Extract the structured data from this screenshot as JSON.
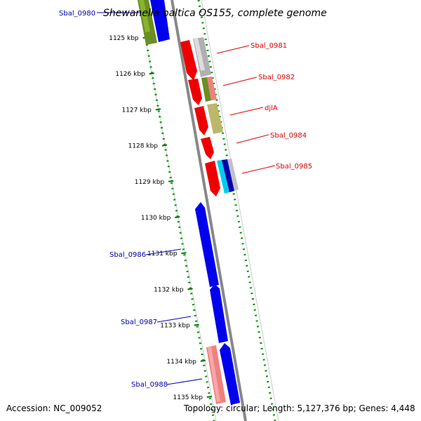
{
  "title": "Shewanella baltica OS155, complete genome",
  "accession": "Accession: NC_009052",
  "topology": "Topology: circular; Length: 5,127,376 bp; Genes: 4,448",
  "colors": {
    "forward": "#ff0000",
    "reverse": "#0000ff",
    "tick": "#007700",
    "backbone": "#888888"
  },
  "ticks": [
    {
      "kbp": 1125,
      "label": "1125 kbp"
    },
    {
      "kbp": 1126,
      "label": "1126 kbp"
    },
    {
      "kbp": 1127,
      "label": "1127 kbp"
    },
    {
      "kbp": 1128,
      "label": "1128 kbp"
    },
    {
      "kbp": 1129,
      "label": "1129 kbp"
    },
    {
      "kbp": 1130,
      "label": "1130 kbp"
    },
    {
      "kbp": 1131,
      "label": "1131 kbp"
    },
    {
      "kbp": 1132,
      "label": "1132 kbp"
    },
    {
      "kbp": 1133,
      "label": "1133 kbp"
    },
    {
      "kbp": 1134,
      "label": "1134 kbp"
    },
    {
      "kbp": 1135,
      "label": "1135 kbp"
    }
  ],
  "genes": [
    {
      "name": "Sbal_0980",
      "strand": "reverse"
    },
    {
      "name": "Sbal_0981",
      "strand": "forward"
    },
    {
      "name": "Sbal_0982",
      "strand": "forward"
    },
    {
      "name": "djlA",
      "strand": "forward"
    },
    {
      "name": "Sbal_0984",
      "strand": "forward"
    },
    {
      "name": "Sbal_0985",
      "strand": "forward"
    },
    {
      "name": "Sbal_0986",
      "strand": "reverse"
    },
    {
      "name": "Sbal_0987",
      "strand": "reverse"
    },
    {
      "name": "Sbal_0988",
      "strand": "reverse"
    }
  ]
}
